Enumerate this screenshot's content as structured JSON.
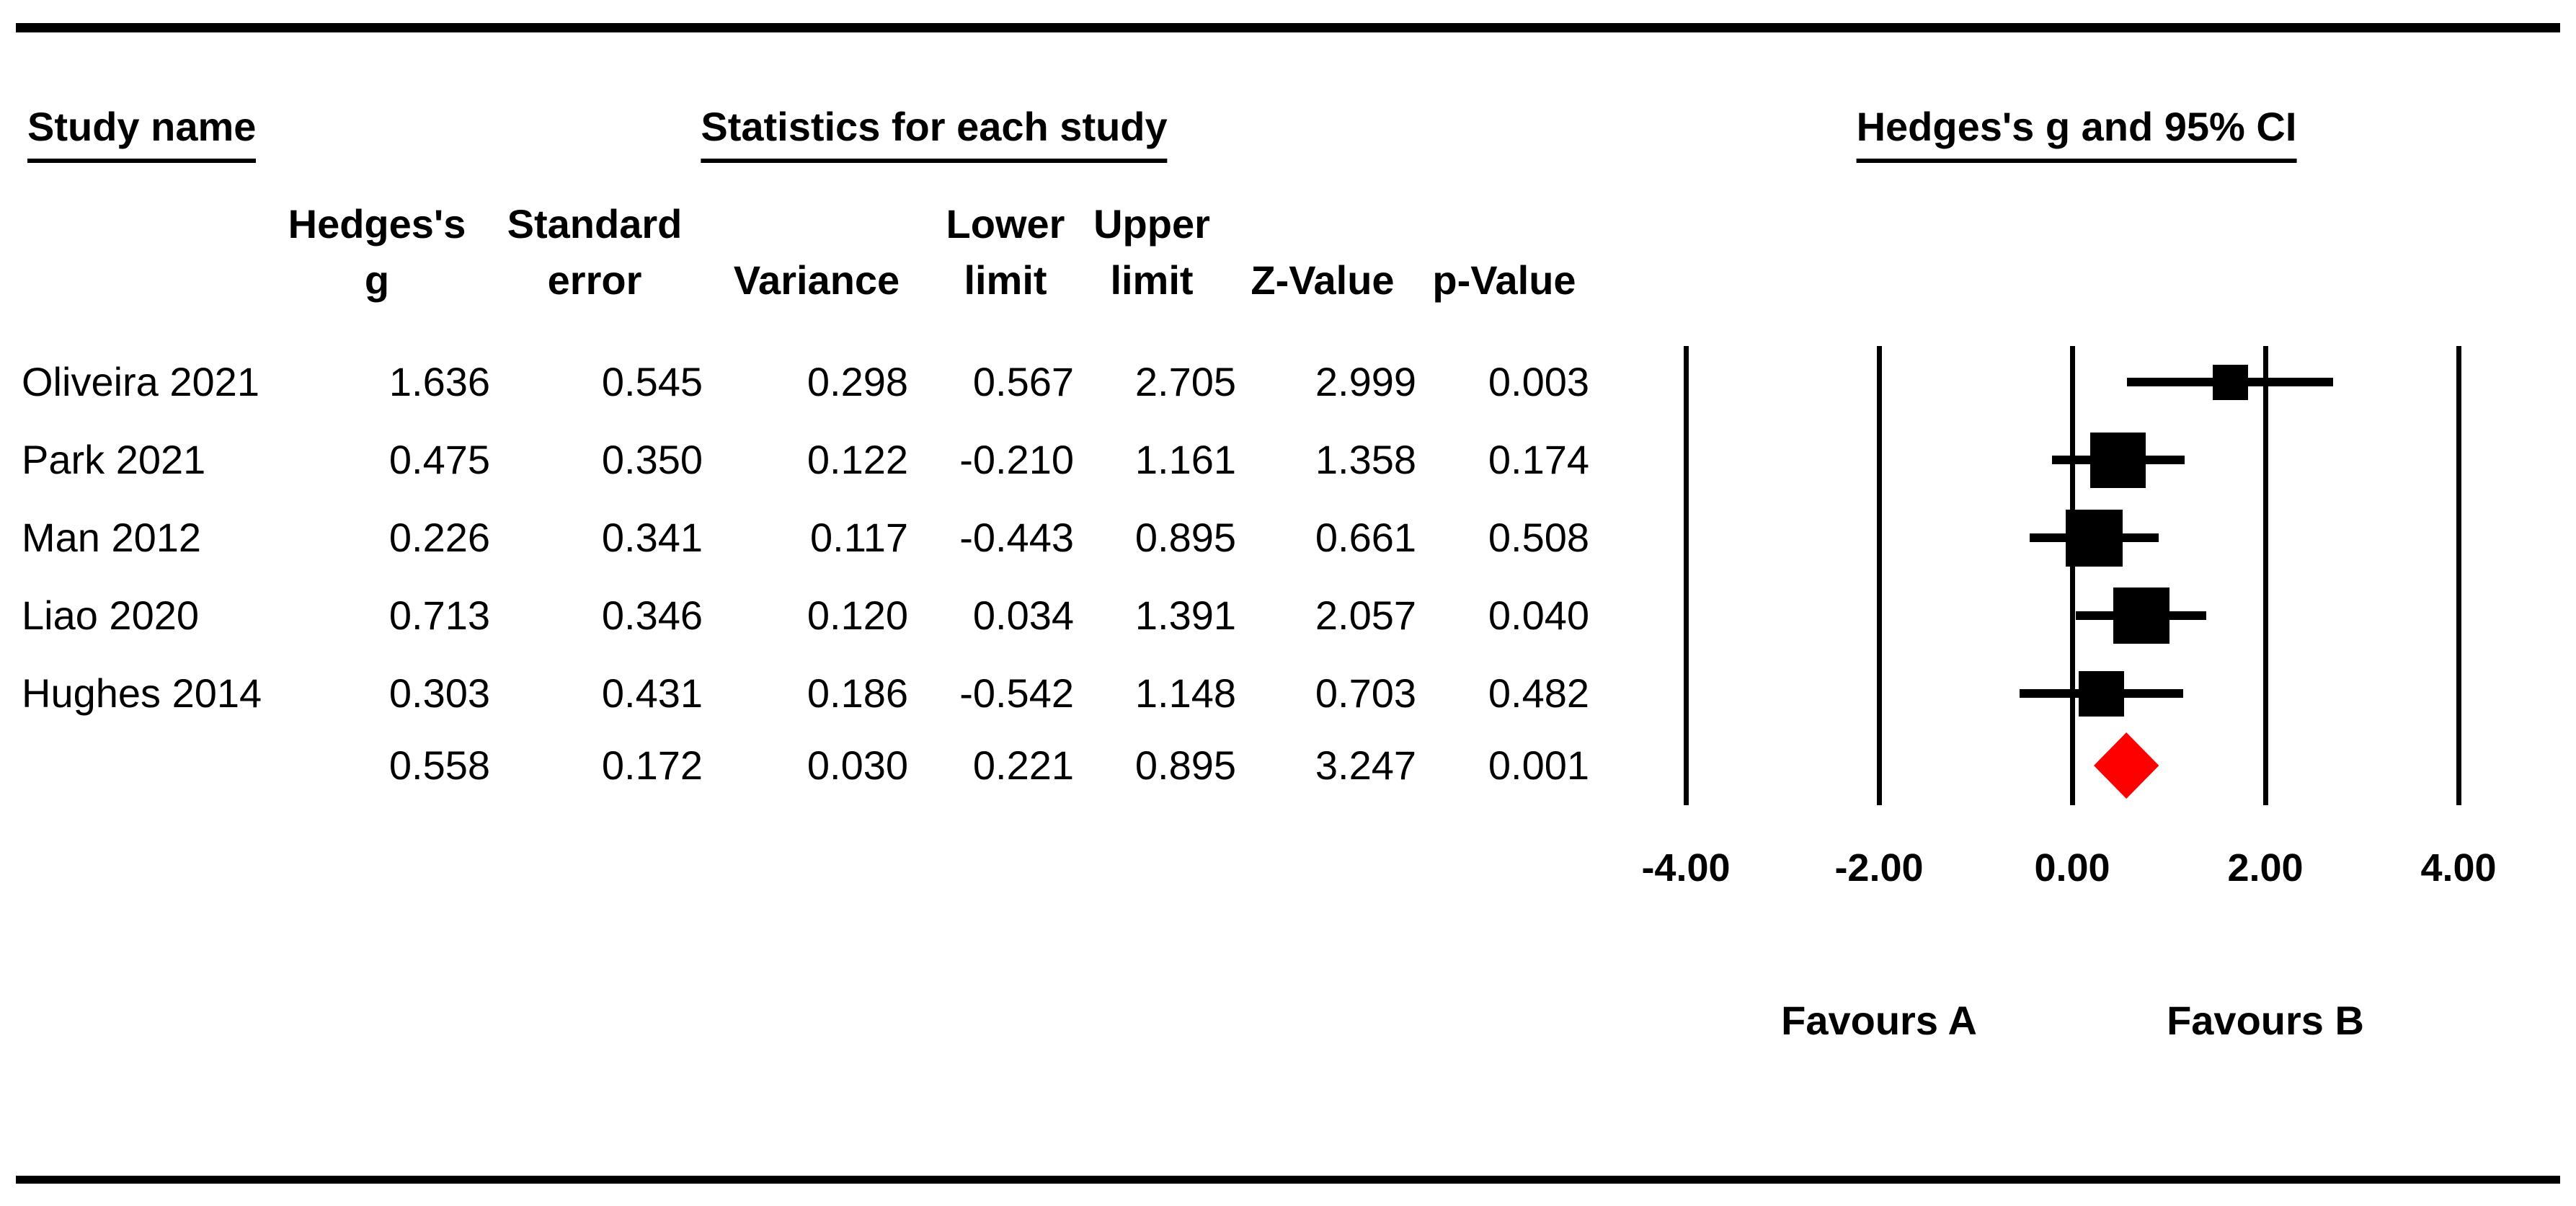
{
  "table": {
    "header": {
      "study": "Study name",
      "stats": "Statistics for each study",
      "ci": "Hedges's g and 95% CI",
      "columns": [
        {
          "line1": "Hedges's",
          "line2": "g"
        },
        {
          "line1": "Standard",
          "line2": "error"
        },
        {
          "line1": "",
          "line2": "Variance"
        },
        {
          "line1": "Lower",
          "line2": "limit"
        },
        {
          "line1": "Upper",
          "line2": "limit"
        },
        {
          "line1": "",
          "line2": "Z-Value"
        },
        {
          "line1": "",
          "line2": "p-Value"
        }
      ]
    }
  },
  "chart_data": {
    "type": "forest",
    "title": "Hedges's g and 95% CI",
    "effect_measure": "Hedges's g",
    "studies": [
      {
        "name": "Oliveira 2021",
        "g": 1.636,
        "se": 0.545,
        "variance": 0.298,
        "lower": 0.567,
        "upper": 2.705,
        "z": 2.999,
        "p": 0.003
      },
      {
        "name": "Park 2021",
        "g": 0.475,
        "se": 0.35,
        "variance": 0.122,
        "lower": -0.21,
        "upper": 1.161,
        "z": 1.358,
        "p": 0.174
      },
      {
        "name": "Man 2012",
        "g": 0.226,
        "se": 0.341,
        "variance": 0.117,
        "lower": -0.443,
        "upper": 0.895,
        "z": 0.661,
        "p": 0.508
      },
      {
        "name": "Liao 2020",
        "g": 0.713,
        "se": 0.346,
        "variance": 0.12,
        "lower": 0.034,
        "upper": 1.391,
        "z": 2.057,
        "p": 0.04
      },
      {
        "name": "Hughes 2014",
        "g": 0.303,
        "se": 0.431,
        "variance": 0.186,
        "lower": -0.542,
        "upper": 1.148,
        "z": 0.703,
        "p": 0.482
      }
    ],
    "summary": {
      "name": "",
      "g": 0.558,
      "se": 0.172,
      "variance": 0.03,
      "lower": 0.221,
      "upper": 0.895,
      "z": 3.247,
      "p": 0.001
    },
    "axis": {
      "min": -4,
      "max": 4,
      "ticks": [
        -4,
        -2,
        0,
        2,
        4
      ],
      "tick_labels": [
        "-4.00",
        "-2.00",
        "0.00",
        "2.00",
        "4.00"
      ]
    },
    "footer_labels": {
      "left": "Favours A",
      "right": "Favours B"
    },
    "colors": {
      "study_marker": "#000000",
      "summary_diamond": "#ff0000",
      "line": "#000000"
    },
    "layout_hints": {
      "grid": "vertical gridlines at ticks",
      "legend": "none",
      "value_decimals": 3
    }
  }
}
